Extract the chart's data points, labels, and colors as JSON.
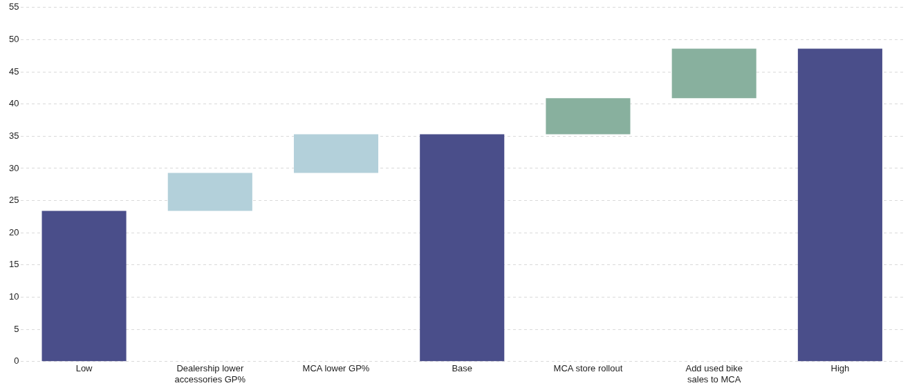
{
  "chart_data": {
    "type": "bar",
    "categories": [
      "Low",
      "Dealership lower accessories GP%",
      "MCA lower GP%",
      "Base",
      "MCA store rollout",
      "Add used bike sales to MCA",
      "High"
    ],
    "values": [
      23.4,
      5.9,
      6.0,
      35.3,
      5.6,
      7.7,
      48.6
    ],
    "base": [
      0,
      23.4,
      29.3,
      0,
      35.3,
      40.9,
      0
    ],
    "colors": [
      "#4a4e8a",
      "#b3d0da",
      "#b3d0da",
      "#4a4e8a",
      "#88b09e",
      "#88b09e",
      "#4a4e8a"
    ],
    "ylim": [
      0,
      55
    ],
    "yticks": [
      0,
      5,
      10,
      15,
      20,
      25,
      30,
      35,
      40,
      45,
      50,
      55
    ],
    "grid": "y",
    "legend": false
  }
}
